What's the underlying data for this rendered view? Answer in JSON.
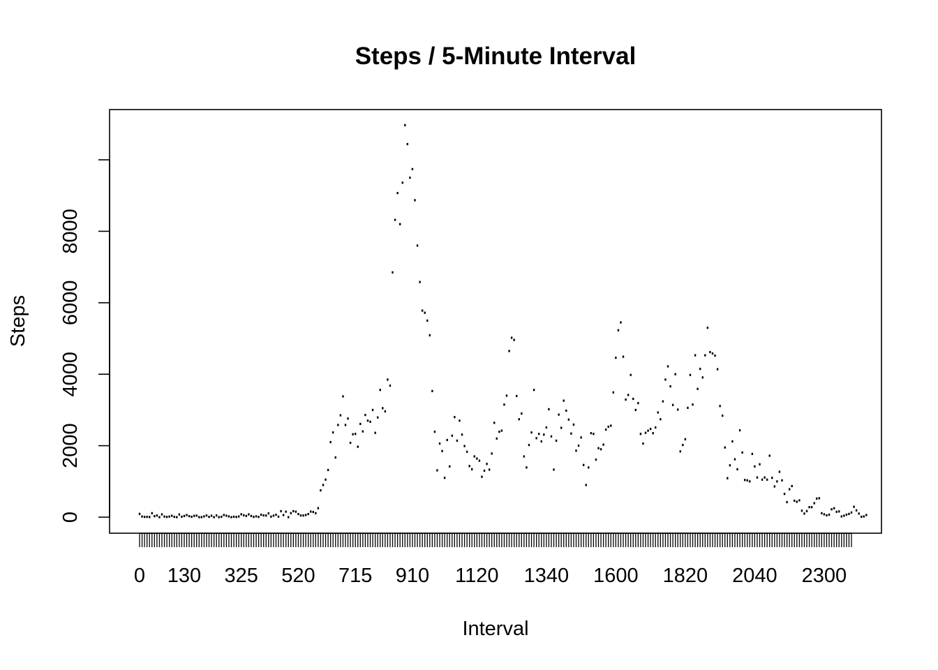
{
  "chart_data": {
    "type": "scatter",
    "title": "Steps / 5-Minute Interval",
    "xlabel": "Interval",
    "ylabel": "Steps",
    "ylim": [
      0,
      10800
    ],
    "y_ticks": [
      0,
      2000,
      4000,
      6000,
      8000
    ],
    "x_tick_labels": [
      "0",
      "130",
      "325",
      "520",
      "715",
      "910",
      "1120",
      "1340",
      "1600",
      "1820",
      "2040",
      "2300"
    ],
    "intervals": [
      "0",
      "5",
      "10",
      "15",
      "20",
      "25",
      "30",
      "35",
      "40",
      "45",
      "50",
      "55",
      "100",
      "105",
      "110",
      "115",
      "120",
      "125",
      "130",
      "135",
      "140",
      "145",
      "150",
      "155",
      "200",
      "205",
      "210",
      "215",
      "220",
      "225",
      "230",
      "235",
      "240",
      "245",
      "250",
      "255",
      "300",
      "305",
      "310",
      "315",
      "320",
      "325",
      "330",
      "335",
      "340",
      "345",
      "350",
      "355",
      "400",
      "405",
      "410",
      "415",
      "420",
      "425",
      "430",
      "435",
      "440",
      "445",
      "450",
      "455",
      "500",
      "505",
      "510",
      "515",
      "520",
      "525",
      "530",
      "535",
      "540",
      "545",
      "550",
      "555",
      "600",
      "605",
      "610",
      "615",
      "620",
      "625",
      "630",
      "635",
      "640",
      "645",
      "650",
      "655",
      "700",
      "705",
      "710",
      "715",
      "720",
      "725",
      "730",
      "735",
      "740",
      "745",
      "750",
      "755",
      "800",
      "805",
      "810",
      "815",
      "820",
      "825",
      "830",
      "835",
      "840",
      "845",
      "850",
      "855",
      "900",
      "905",
      "910",
      "915",
      "920",
      "925",
      "930",
      "935",
      "940",
      "945",
      "950",
      "955",
      "1000",
      "1005",
      "1010",
      "1015",
      "1020",
      "1025",
      "1030",
      "1035",
      "1040",
      "1045",
      "1050",
      "1055",
      "1100",
      "1105",
      "1110",
      "1115",
      "1120",
      "1125",
      "1130",
      "1135",
      "1140",
      "1145",
      "1150",
      "1155",
      "1200",
      "1205",
      "1210",
      "1215",
      "1220",
      "1225",
      "1230",
      "1235",
      "1240",
      "1245",
      "1250",
      "1255",
      "1300",
      "1305",
      "1310",
      "1315",
      "1320",
      "1325",
      "1330",
      "1335",
      "1340",
      "1345",
      "1350",
      "1355",
      "1400",
      "1405",
      "1410",
      "1415",
      "1420",
      "1425",
      "1430",
      "1435",
      "1440",
      "1445",
      "1450",
      "1455",
      "1500",
      "1505",
      "1510",
      "1515",
      "1520",
      "1525",
      "1530",
      "1535",
      "1540",
      "1545",
      "1550",
      "1555",
      "1600",
      "1605",
      "1610",
      "1615",
      "1620",
      "1625",
      "1630",
      "1635",
      "1640",
      "1645",
      "1650",
      "1655",
      "1700",
      "1705",
      "1710",
      "1715",
      "1720",
      "1725",
      "1730",
      "1735",
      "1740",
      "1745",
      "1750",
      "1755",
      "1800",
      "1805",
      "1810",
      "1815",
      "1820",
      "1825",
      "1830",
      "1835",
      "1840",
      "1845",
      "1850",
      "1855",
      "1900",
      "1905",
      "1910",
      "1915",
      "1920",
      "1925",
      "1930",
      "1935",
      "1940",
      "1945",
      "1950",
      "1955",
      "2000",
      "2005",
      "2010",
      "2015",
      "2020",
      "2025",
      "2030",
      "2035",
      "2040",
      "2045",
      "2050",
      "2055",
      "2100",
      "2105",
      "2110",
      "2115",
      "2120",
      "2125",
      "2130",
      "2135",
      "2140",
      "2145",
      "2150",
      "2155",
      "2200",
      "2205",
      "2210",
      "2215",
      "2220",
      "2225",
      "2230",
      "2235",
      "2240",
      "2245",
      "2250",
      "2255",
      "2300",
      "2305",
      "2310",
      "2315",
      "2320",
      "2325",
      "2330",
      "2335",
      "2340",
      "2345",
      "2350",
      "2355"
    ],
    "steps": [
      91,
      18,
      7,
      8,
      4,
      111,
      28,
      46,
      0,
      78,
      16,
      7,
      17,
      39,
      8,
      0,
      75,
      11,
      33,
      59,
      27,
      10,
      36,
      42,
      0,
      1,
      21,
      47,
      8,
      40,
      0,
      48,
      0,
      11,
      61,
      40,
      20,
      0,
      12,
      5,
      19,
      80,
      53,
      34,
      78,
      33,
      8,
      23,
      6,
      68,
      49,
      45,
      105,
      15,
      42,
      67,
      14,
      167,
      58,
      154,
      0,
      112,
      168,
      153,
      87,
      48,
      46,
      60,
      87,
      156,
      145,
      111,
      251,
      750,
      900,
      1050,
      1320,
      2100,
      2370,
      1670,
      2580,
      2850,
      3380,
      2580,
      2760,
      2080,
      2320,
      2330,
      1970,
      2610,
      2400,
      2860,
      2700,
      2670,
      3000,
      2360,
      2790,
      3560,
      3050,
      2960,
      3850,
      3680,
      6850,
      8320,
      9070,
      8200,
      9360,
      10970,
      10440,
      9500,
      9740,
      8870,
      7600,
      6580,
      5780,
      5720,
      5500,
      5090,
      3530,
      2390,
      1310,
      2060,
      1850,
      1100,
      2160,
      1420,
      2280,
      2800,
      2140,
      2700,
      2310,
      1990,
      1830,
      1430,
      1340,
      1700,
      1640,
      1580,
      1130,
      1300,
      1490,
      1330,
      1780,
      2640,
      2200,
      2390,
      2420,
      3150,
      3400,
      4650,
      5020,
      4960,
      3390,
      2740,
      2900,
      1700,
      1390,
      2020,
      2370,
      3560,
      2210,
      2330,
      2120,
      2310,
      2510,
      3020,
      2260,
      1330,
      2140,
      2870,
      2500,
      3260,
      2980,
      2730,
      2340,
      2590,
      1860,
      2000,
      2230,
      1460,
      900,
      1390,
      2350,
      2330,
      1610,
      1930,
      1900,
      2030,
      2450,
      2530,
      2560,
      3490,
      4460,
      5230,
      5450,
      4490,
      3290,
      3420,
      3980,
      3310,
      3000,
      3190,
      2330,
      2060,
      2360,
      2420,
      2470,
      2350,
      2510,
      2930,
      2740,
      3240,
      3850,
      4220,
      3660,
      3140,
      4000,
      3010,
      1840,
      2020,
      2180,
      3060,
      3980,
      3150,
      4530,
      3590,
      4150,
      3910,
      4530,
      5300,
      4620,
      4580,
      4520,
      4140,
      3110,
      2840,
      1950,
      1090,
      1450,
      2120,
      1620,
      1340,
      2430,
      1810,
      1040,
      1030,
      1000,
      1770,
      1420,
      1110,
      1480,
      1050,
      1110,
      1050,
      1720,
      1100,
      860,
      1000,
      1270,
      1030,
      650,
      420,
      780,
      870,
      460,
      430,
      470,
      180,
      100,
      170,
      280,
      280,
      390,
      520,
      530,
      110,
      80,
      50,
      70,
      220,
      250,
      150,
      160,
      20,
      40,
      70,
      90,
      130,
      290,
      190,
      100,
      10,
      20,
      60
    ]
  }
}
